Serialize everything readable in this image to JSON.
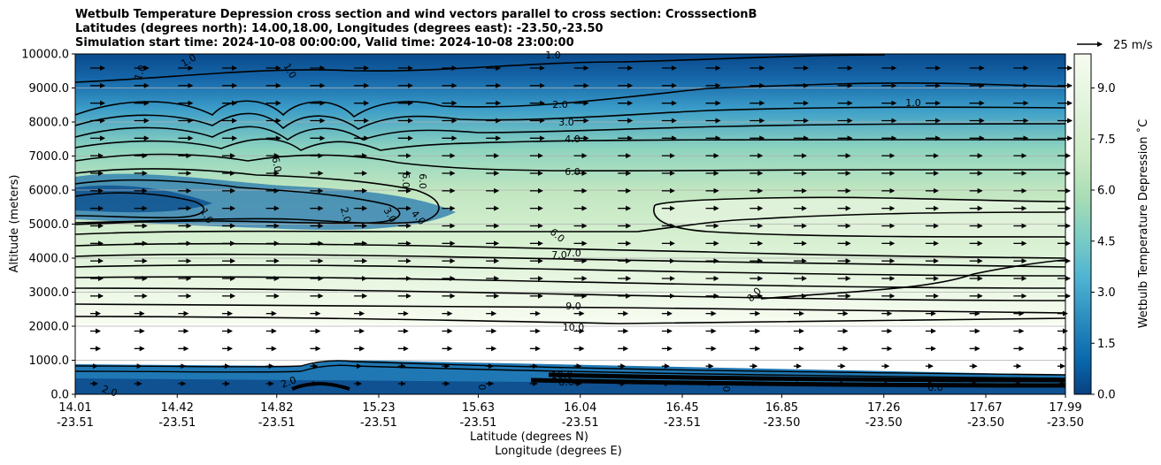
{
  "chart_data": {
    "type": "contour",
    "title_lines": [
      "Wetbulb Temperature Depression cross section and wind vectors parallel to cross section: CrosssectionB",
      "Latitudes (degrees north): 14.00,18.00, Longitudes (degrees east): -23.50,-23.50",
      "Simulation start time: 2024-10-08 00:00:00, Valid time: 2024-10-08 23:00:00"
    ],
    "ylabel": "Altitude (meters)",
    "xlabel": "Latitude (degrees N)",
    "xlabel2": "Longitude (degrees E)",
    "ylim": [
      0,
      10000
    ],
    "xlim": [
      14.01,
      17.99
    ],
    "y_ticks": [
      "0.0",
      "1000.0",
      "2000.0",
      "3000.0",
      "4000.0",
      "5000.0",
      "6000.0",
      "7000.0",
      "8000.0",
      "9000.0",
      "10000.0"
    ],
    "x_ticks": [
      {
        "lat": "14.01",
        "lon": "-23.51"
      },
      {
        "lat": "14.42",
        "lon": "-23.51"
      },
      {
        "lat": "14.82",
        "lon": "-23.51"
      },
      {
        "lat": "15.23",
        "lon": "-23.51"
      },
      {
        "lat": "15.63",
        "lon": "-23.51"
      },
      {
        "lat": "16.04",
        "lon": "-23.51"
      },
      {
        "lat": "16.45",
        "lon": "-23.51"
      },
      {
        "lat": "16.85",
        "lon": "-23.50"
      },
      {
        "lat": "17.26",
        "lon": "-23.50"
      },
      {
        "lat": "17.67",
        "lon": "-23.50"
      },
      {
        "lat": "17.99",
        "lon": "-23.50"
      }
    ],
    "colorbar": {
      "label": "Wetbulb Temperature Depression ˚C",
      "range": [
        0,
        10
      ],
      "ticks": [
        "0.0",
        "1.5",
        "3.0",
        "4.5",
        "6.0",
        "7.5",
        "9.0"
      ]
    },
    "quiver_key": {
      "label": "25 m/s"
    },
    "grid": "horizontal",
    "contour_labels": [
      "1.0",
      "1.0",
      "1.0",
      "1.0",
      "1.0",
      "2.0",
      "3.0",
      "4.0",
      "6.0",
      "6.0",
      "6.0",
      "6.0",
      "2.0",
      "3.0",
      "4.0",
      "1.0",
      "6.0",
      "7.0",
      "7.0",
      "8.0",
      "9.0",
      "10.0",
      "2.0",
      "2.0",
      "0",
      "0",
      "0.0",
      "10.0",
      "8.0"
    ],
    "colors": {
      "low": "#084081",
      "mid": "#7bccc4",
      "high": "#f7fcf0"
    }
  }
}
